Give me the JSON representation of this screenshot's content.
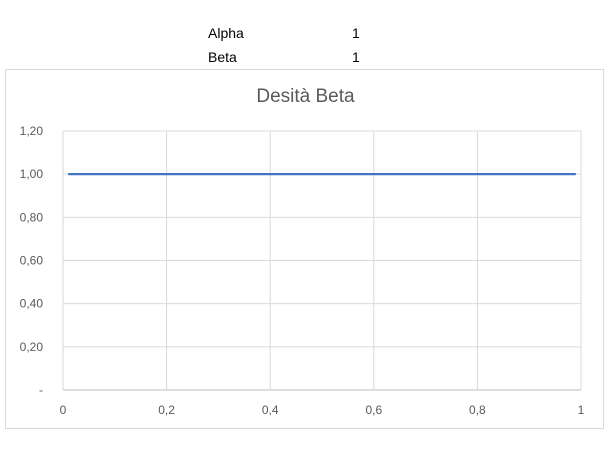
{
  "params": [
    {
      "label": "Alpha",
      "value": "1"
    },
    {
      "label": "Beta",
      "value": "1"
    }
  ],
  "chart_data": {
    "type": "line",
    "title": "Desità Beta",
    "x": [
      0.01,
      0.1,
      0.2,
      0.3,
      0.4,
      0.5,
      0.6,
      0.7,
      0.8,
      0.9,
      0.99
    ],
    "series": [
      {
        "values": [
          1,
          1,
          1,
          1,
          1,
          1,
          1,
          1,
          1,
          1,
          1
        ],
        "color": "#4472c4"
      }
    ],
    "xlim": [
      0,
      1
    ],
    "ylim": [
      0,
      1.2
    ],
    "x_ticks": [
      "0",
      "0,2",
      "0,4",
      "0,6",
      "0,8",
      "1"
    ],
    "y_ticks": [
      "-",
      "0,20",
      "0,40",
      "0,60",
      "0,80",
      "1,00",
      "1,20"
    ],
    "grid": true,
    "legend": "none"
  }
}
